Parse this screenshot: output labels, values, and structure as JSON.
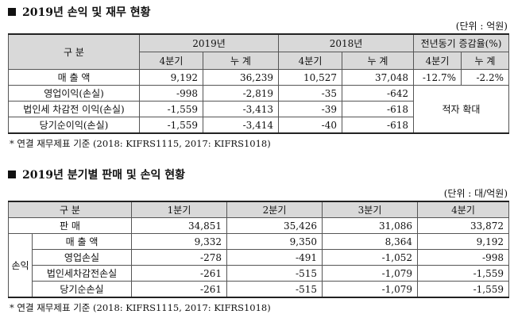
{
  "section1": {
    "title": "2019년 손익 및 재무 현황",
    "unit": "(단위 : 억원)",
    "table": {
      "header": {
        "label": "구 분",
        "groups": [
          "2019년",
          "2018년",
          "전년동기 증감율(%)"
        ],
        "sub": [
          "4분기",
          "누 계",
          "4분기",
          "누 계",
          "4분기",
          "누 계"
        ]
      },
      "rows": [
        {
          "label": "매 출 액",
          "values": [
            "9,192",
            "36,239",
            "10,527",
            "37,048",
            "-12.7%",
            "-2.2%"
          ]
        },
        {
          "label": "영업이익(손실)",
          "values": [
            "-998",
            "-2,819",
            "-35",
            "-642"
          ]
        },
        {
          "label": "법인세 차감전 이익(손실)",
          "values": [
            "-1,559",
            "-3,413",
            "-39",
            "-618"
          ]
        },
        {
          "label": "당기순이익(손실)",
          "values": [
            "-1,559",
            "-3,414",
            "-40",
            "-618"
          ]
        }
      ],
      "merged_note": "적자 확대"
    },
    "footnote": "* 연결 재무제표 기준 (2018: KIFRS1115, 2017: KIFRS1018)"
  },
  "section2": {
    "title": "2019년 분기별 판매 및 손익 현황",
    "unit": "(단위 : 대/억원)",
    "table": {
      "header": {
        "label": "구 분",
        "columns": [
          "1분기",
          "2분기",
          "3분기",
          "4분기"
        ]
      },
      "rows": [
        {
          "label": "판 매",
          "values": [
            "34,851",
            "35,426",
            "31,086",
            "33,872"
          ]
        }
      ],
      "group": {
        "label": "손익",
        "rows": [
          {
            "label": "매 출 액",
            "values": [
              "9,332",
              "9,350",
              "8,364",
              "9,192"
            ]
          },
          {
            "label": "영업손실",
            "values": [
              "-278",
              "-491",
              "-1,052",
              "-998"
            ]
          },
          {
            "label": "법인세차감전손실",
            "values": [
              "-261",
              "-515",
              "-1,079",
              "-1,559"
            ]
          },
          {
            "label": "당기순손실",
            "values": [
              "-261",
              "-515",
              "-1,079",
              "-1,559"
            ]
          }
        ]
      }
    },
    "footnote": "* 연결 재무제표 기준 (2018: KIFRS1115, 2017: KIFRS1018)"
  }
}
